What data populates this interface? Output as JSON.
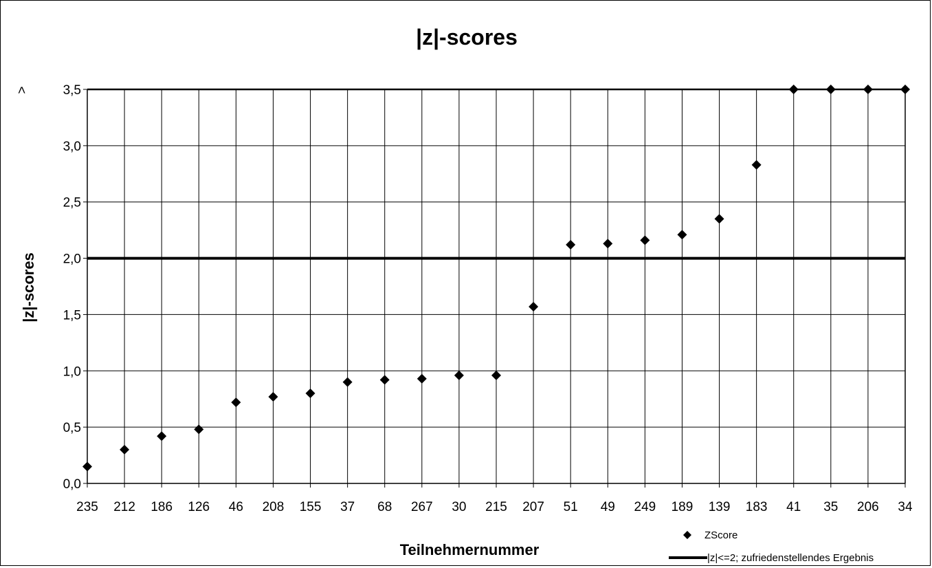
{
  "chart_data": {
    "type": "scatter",
    "title": "|z|-scores",
    "xlabel": "Teilnehmernummer",
    "ylabel": "|z|-scores",
    "categories": [
      "235",
      "212",
      "186",
      "126",
      "46",
      "208",
      "155",
      "37",
      "68",
      "267",
      "30",
      "215",
      "207",
      "51",
      "49",
      "249",
      "189",
      "139",
      "183",
      "41",
      "35",
      "206",
      "34"
    ],
    "series": [
      {
        "name": "ZScore",
        "marker": "diamond",
        "color": "#000000",
        "values": [
          0.15,
          0.3,
          0.42,
          0.48,
          0.72,
          0.77,
          0.8,
          0.9,
          0.92,
          0.93,
          0.96,
          0.96,
          1.57,
          2.12,
          2.13,
          2.16,
          2.21,
          2.35,
          2.83,
          3.5,
          3.5,
          3.5,
          3.5
        ]
      },
      {
        "name": "|z|<=2; zufriedenstellendes Ergebnis",
        "type": "reference-line",
        "color": "#000000",
        "value": 2.0
      }
    ],
    "ylim": [
      0,
      3.5
    ],
    "yticks": [
      "0,0",
      "0,5",
      "1,0",
      "1,5",
      "2,0",
      "2,5",
      "3,0",
      "3,5"
    ],
    "ytick_overflow_prefix": ">",
    "grid": true,
    "legend_position": "bottom-right"
  }
}
